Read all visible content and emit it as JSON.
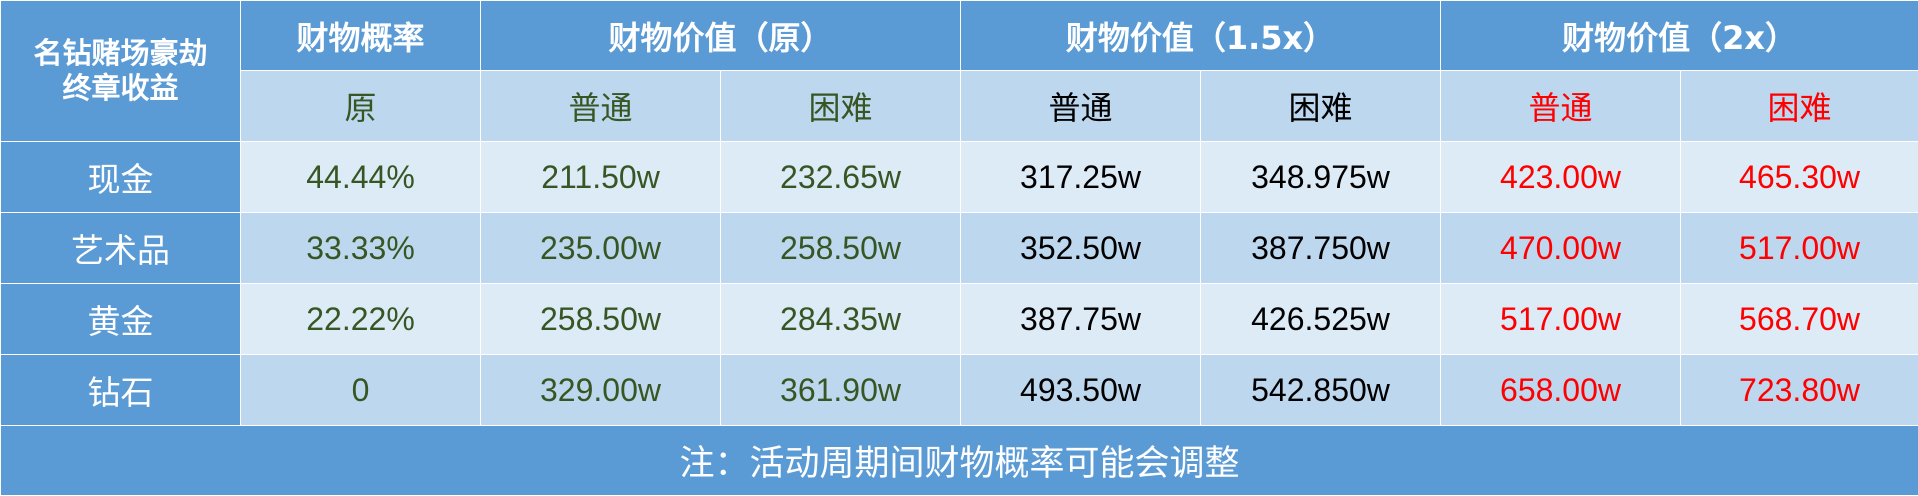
{
  "title": [
    "名钻赌场豪劫",
    "终章收益"
  ],
  "groups": {
    "probability": "财物概率",
    "original": "财物价值（原）",
    "x15": "财物价值（1.5x）",
    "x2": "财物价值（2x）"
  },
  "subheaders": {
    "prob": "原",
    "normal": "普通",
    "hard": "困难"
  },
  "rows": [
    {
      "label": "现金",
      "values": [
        "44.44%",
        "211.50w",
        "232.65w",
        "317.25w",
        "348.975w",
        "423.00w",
        "465.30w"
      ]
    },
    {
      "label": "艺术品",
      "values": [
        "33.33%",
        "235.00w",
        "258.50w",
        "352.50w",
        "387.750w",
        "470.00w",
        "517.00w"
      ]
    },
    {
      "label": "黄金",
      "values": [
        "22.22%",
        "258.50w",
        "284.35w",
        "387.75w",
        "426.525w",
        "517.00w",
        "568.70w"
      ]
    },
    {
      "label": "钻石",
      "values": [
        "0",
        "329.00w",
        "361.90w",
        "493.50w",
        "542.850w",
        "658.00w",
        "723.80w"
      ]
    }
  ],
  "note": "注：活动周期间财物概率可能会调整",
  "colors": {
    "header_blue": "#5b9bd5",
    "cell_light": "#ddebf7",
    "cell_medium": "#bdd7ee",
    "green_text": "#375623",
    "red_text": "#ff0000"
  }
}
